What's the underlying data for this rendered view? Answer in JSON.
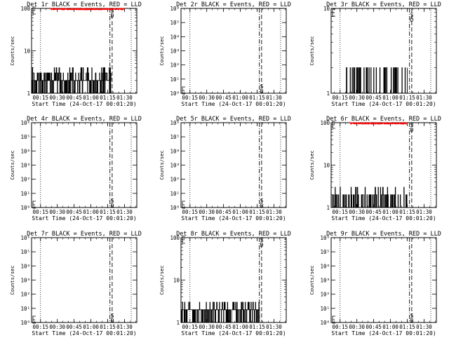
{
  "colors": {
    "events": "#000000",
    "lld": "#ff0000",
    "background": "#ffffff"
  },
  "chart_data": [
    {
      "type": "line",
      "title": "Det 1r BLACK = Events, RED = LLD",
      "ylabel": "Counts/sec",
      "xlabel": "Start Time (24-Oct-17 00:01:20)",
      "yscale": "log",
      "ylim": [
        1,
        100
      ],
      "yticks": [
        {
          "v": 1,
          "l": "1"
        },
        {
          "v": 10,
          "l": "10"
        },
        {
          "v": 100,
          "l": "100"
        }
      ],
      "xlim": [
        "00:07",
        "01:41"
      ],
      "xticks": [
        "00:15",
        "00:30",
        "00:45",
        "01:00",
        "01:15",
        "01:30"
      ],
      "dotted_lines": [
        "00:15",
        "01:36"
      ],
      "dash_dot_line": "01:17",
      "dashed_line": "01:19",
      "marker_labels": [
        "S",
        "D"
      ],
      "series": [
        {
          "color": "#000000",
          "noise_level": 2,
          "noise_max": 4,
          "start": "00:07",
          "end": "01:18"
        },
        {
          "color": "#ff0000",
          "noise_level": 100,
          "noise_max": 100,
          "start": "00:24",
          "end": "01:30"
        }
      ]
    },
    {
      "type": "line",
      "title": "Det 2r BLACK = Events, RED = LLD",
      "ylabel": "Counts/sec",
      "xlabel": "Start Time (24-Oct-17 00:01:20)",
      "yscale": "log",
      "ylim": [
        1,
        1000000
      ],
      "yticks": [
        {
          "v": 1,
          "l": "10⁰"
        },
        {
          "v": 10,
          "l": "10¹"
        },
        {
          "v": 100,
          "l": "10²"
        },
        {
          "v": 1000,
          "l": "10³"
        },
        {
          "v": 10000,
          "l": "10⁴"
        },
        {
          "v": 100000,
          "l": "10⁵"
        },
        {
          "v": 1000000,
          "l": "10⁶"
        }
      ],
      "xlim": [
        "00:07",
        "01:41"
      ],
      "xticks": [
        "00:15",
        "00:30",
        "00:45",
        "01:00",
        "01:15",
        "01:30"
      ],
      "dotted_lines": [
        "00:15",
        "01:36"
      ],
      "dash_dot_line": "01:17",
      "dashed_line": "01:19",
      "marker_labels": [
        "S",
        "D"
      ],
      "series": []
    },
    {
      "type": "line",
      "title": "Det 3r BLACK = Events, RED = LLD",
      "ylabel": "Counts/sec",
      "xlabel": "Start Time (24-Oct-17 00:01:20)",
      "yscale": "log",
      "ylim": [
        1,
        10
      ],
      "yticks": [
        {
          "v": 1,
          "l": "1"
        },
        {
          "v": 10,
          "l": "10"
        }
      ],
      "xlim": [
        "00:07",
        "01:41"
      ],
      "xticks": [
        "00:15",
        "00:30",
        "00:45",
        "01:00",
        "01:15",
        "01:30"
      ],
      "dotted_lines": [
        "00:15",
        "01:36"
      ],
      "dash_dot_line": "01:17",
      "dashed_line": "01:19",
      "marker_labels": [
        "S",
        "D"
      ],
      "series": [
        {
          "color": "#000000",
          "noise_level": 1,
          "noise_max": 2,
          "start": "00:20",
          "end": "01:15"
        }
      ]
    },
    {
      "type": "line",
      "title": "Det 4r BLACK = Events, RED = LLD",
      "ylabel": "Counts/sec",
      "xlabel": "Start Time (24-Oct-17 00:01:20)",
      "yscale": "log",
      "ylim": [
        1,
        1000000
      ],
      "yticks": [
        {
          "v": 1,
          "l": "10⁰"
        },
        {
          "v": 10,
          "l": "10¹"
        },
        {
          "v": 100,
          "l": "10²"
        },
        {
          "v": 1000,
          "l": "10³"
        },
        {
          "v": 10000,
          "l": "10⁴"
        },
        {
          "v": 100000,
          "l": "10⁵"
        },
        {
          "v": 1000000,
          "l": "10⁶"
        }
      ],
      "xlim": [
        "00:07",
        "01:41"
      ],
      "xticks": [
        "00:15",
        "00:30",
        "00:45",
        "01:00",
        "01:15",
        "01:30"
      ],
      "dotted_lines": [
        "00:15",
        "01:36"
      ],
      "dash_dot_line": "01:17",
      "dashed_line": "01:19",
      "marker_labels": [
        "S",
        "D"
      ],
      "series": []
    },
    {
      "type": "line",
      "title": "Det 5r BLACK = Events, RED = LLD",
      "ylabel": "Counts/sec",
      "xlabel": "Start Time (24-Oct-17 00:01:20)",
      "yscale": "log",
      "ylim": [
        1,
        1000000
      ],
      "yticks": [
        {
          "v": 1,
          "l": "10⁰"
        },
        {
          "v": 10,
          "l": "10¹"
        },
        {
          "v": 100,
          "l": "10²"
        },
        {
          "v": 1000,
          "l": "10³"
        },
        {
          "v": 10000,
          "l": "10⁴"
        },
        {
          "v": 100000,
          "l": "10⁵"
        },
        {
          "v": 1000000,
          "l": "10⁶"
        }
      ],
      "xlim": [
        "00:07",
        "01:41"
      ],
      "xticks": [
        "00:15",
        "00:30",
        "00:45",
        "01:00",
        "01:15",
        "01:30"
      ],
      "dotted_lines": [
        "00:15",
        "01:36"
      ],
      "dash_dot_line": "01:17",
      "dashed_line": "01:19",
      "marker_labels": [
        "S",
        "D"
      ],
      "series": []
    },
    {
      "type": "line",
      "title": "Det 6r BLACK = Events, RED = LLD",
      "ylabel": "Counts/sec",
      "xlabel": "Start Time (24-Oct-17 00:01:20)",
      "yscale": "log",
      "ylim": [
        1,
        100
      ],
      "yticks": [
        {
          "v": 1,
          "l": "1"
        },
        {
          "v": 10,
          "l": "10"
        },
        {
          "v": 100,
          "l": "100"
        }
      ],
      "xlim": [
        "00:07",
        "01:41"
      ],
      "xticks": [
        "00:15",
        "00:30",
        "00:45",
        "01:00",
        "01:15",
        "01:30"
      ],
      "dotted_lines": [
        "00:15",
        "01:36"
      ],
      "dash_dot_line": "01:17",
      "dashed_line": "01:19",
      "marker_labels": [
        "S",
        "D"
      ],
      "series": [
        {
          "color": "#000000",
          "noise_level": 1,
          "noise_max": 3,
          "start": "00:07",
          "end": "01:17"
        },
        {
          "color": "#ff0000",
          "noise_level": 100,
          "noise_max": 100,
          "start": "00:24",
          "end": "01:15"
        }
      ]
    },
    {
      "type": "line",
      "title": "Det 7r BLACK = Events, RED = LLD",
      "ylabel": "Counts/sec",
      "xlabel": "Start Time (24-Oct-17 00:01:20)",
      "yscale": "log",
      "ylim": [
        1,
        1000000
      ],
      "yticks": [
        {
          "v": 1,
          "l": "10⁰"
        },
        {
          "v": 10,
          "l": "10¹"
        },
        {
          "v": 100,
          "l": "10²"
        },
        {
          "v": 1000,
          "l": "10³"
        },
        {
          "v": 10000,
          "l": "10⁴"
        },
        {
          "v": 100000,
          "l": "10⁵"
        },
        {
          "v": 1000000,
          "l": "10⁶"
        }
      ],
      "xlim": [
        "00:07",
        "01:41"
      ],
      "xticks": [
        "00:15",
        "00:30",
        "00:45",
        "01:00",
        "01:15",
        "01:30"
      ],
      "dotted_lines": [
        "00:15",
        "01:36"
      ],
      "dash_dot_line": "01:17",
      "dashed_line": "01:19",
      "marker_labels": [
        "S",
        "D"
      ],
      "series": []
    },
    {
      "type": "line",
      "title": "Det 8r BLACK = Events, RED = LLD",
      "ylabel": "Counts/sec",
      "xlabel": "Start Time (24-Oct-17 00:01:20)",
      "yscale": "log",
      "ylim": [
        1,
        100
      ],
      "yticks": [
        {
          "v": 1,
          "l": "1"
        },
        {
          "v": 10,
          "l": "10"
        },
        {
          "v": 100,
          "l": "100"
        }
      ],
      "xlim": [
        "00:07",
        "01:41"
      ],
      "xticks": [
        "00:15",
        "00:30",
        "00:45",
        "01:00",
        "01:15",
        "01:30"
      ],
      "dotted_lines": [
        "00:15",
        "01:36"
      ],
      "dash_dot_line": "01:17",
      "dashed_line": "01:19",
      "marker_labels": [
        "S",
        "D"
      ],
      "series": [
        {
          "color": "#000000",
          "noise_level": 2,
          "noise_max": 3,
          "start": "00:07",
          "end": "01:17"
        }
      ]
    },
    {
      "type": "line",
      "title": "Det 9r BLACK = Events, RED = LLD",
      "ylabel": "Counts/sec",
      "xlabel": "Start Time (24-Oct-17 00:01:20)",
      "yscale": "log",
      "ylim": [
        1,
        1000000
      ],
      "yticks": [
        {
          "v": 1,
          "l": "10⁰"
        },
        {
          "v": 10,
          "l": "10¹"
        },
        {
          "v": 100,
          "l": "10²"
        },
        {
          "v": 1000,
          "l": "10³"
        },
        {
          "v": 10000,
          "l": "10⁴"
        },
        {
          "v": 100000,
          "l": "10⁵"
        },
        {
          "v": 1000000,
          "l": "10⁶"
        }
      ],
      "xlim": [
        "00:07",
        "01:41"
      ],
      "xticks": [
        "00:15",
        "00:30",
        "00:45",
        "01:00",
        "01:15",
        "01:30"
      ],
      "dotted_lines": [
        "00:15",
        "01:36"
      ],
      "dash_dot_line": "01:17",
      "dashed_line": "01:19",
      "marker_labels": [
        "S",
        "D"
      ],
      "series": []
    }
  ]
}
